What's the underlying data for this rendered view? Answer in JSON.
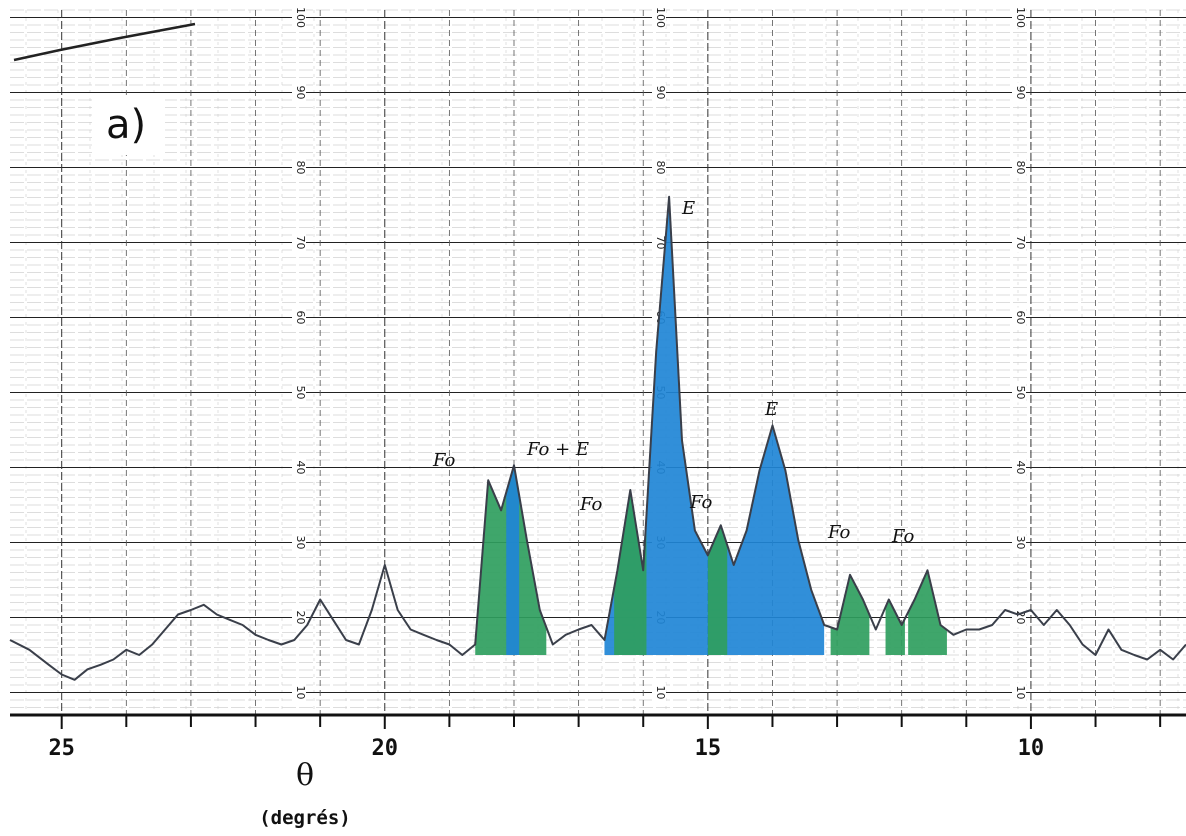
{
  "chart_data": {
    "type": "line",
    "panel_label": "a)",
    "x_label": "θ",
    "x_unit_label": "(degrés)",
    "x": [
      25.8,
      25.5,
      25.2,
      25.0,
      24.8,
      24.6,
      24.4,
      24.2,
      24.0,
      23.8,
      23.6,
      23.4,
      23.2,
      23.0,
      22.8,
      22.6,
      22.4,
      22.2,
      22.0,
      21.8,
      21.6,
      21.4,
      21.2,
      21.0,
      20.8,
      20.6,
      20.4,
      20.2,
      20.0,
      19.8,
      19.6,
      19.4,
      19.2,
      19.0,
      18.8,
      18.6,
      18.4,
      18.2,
      18.0,
      17.8,
      17.6,
      17.4,
      17.2,
      17.0,
      16.8,
      16.6,
      16.4,
      16.2,
      16.0,
      15.8,
      15.6,
      15.4,
      15.2,
      15.0,
      14.8,
      14.6,
      14.4,
      14.2,
      14.0,
      13.8,
      13.6,
      13.4,
      13.2,
      13.0,
      12.8,
      12.6,
      12.4,
      12.2,
      12.0,
      11.8,
      11.6,
      11.4,
      11.2,
      11.0,
      10.8,
      10.6,
      10.4,
      10.2,
      10.0,
      9.8,
      9.6,
      9.4,
      9.2,
      9.0,
      8.8,
      8.6,
      8.4,
      8.2,
      8.0,
      7.8,
      7.6
    ],
    "series": [
      {
        "color": "#3a3f4a",
        "values": [
          17.0,
          15.7,
          13.7,
          12.4,
          11.7,
          13.1,
          13.7,
          14.4,
          15.7,
          15.0,
          16.4,
          18.4,
          20.4,
          21.0,
          21.7,
          20.4,
          19.7,
          19.0,
          17.7,
          17.0,
          16.4,
          17.0,
          19.0,
          22.4,
          19.7,
          17.0,
          16.4,
          21.0,
          27.0,
          21.0,
          18.4,
          17.7,
          17.0,
          16.4,
          15.0,
          16.4,
          38.3,
          34.3,
          40.3,
          30.3,
          21.0,
          16.4,
          17.7,
          18.4,
          19.0,
          17.0,
          26.3,
          37.0,
          26.3,
          55.5,
          76.1,
          43.6,
          31.6,
          28.3,
          32.3,
          27.0,
          31.6,
          39.6,
          45.6,
          39.6,
          30.3,
          23.7,
          19.0,
          18.4,
          25.7,
          22.4,
          18.4,
          22.4,
          19.0,
          22.4,
          26.3,
          19.0,
          17.7,
          18.4,
          18.4,
          19.0,
          21.0,
          20.4,
          21.0,
          19.0,
          21.0,
          19.0,
          16.4,
          15.0,
          18.4,
          15.7,
          15.0,
          14.4,
          15.7,
          14.4,
          16.4
        ]
      }
    ],
    "shaded_baseline": 15,
    "shaded_regions": [
      {
        "color": "#2f9e5e",
        "xrange": [
          18.6,
          17.5
        ]
      },
      {
        "color": "#1f86d6",
        "xrange": [
          18.12,
          17.92
        ]
      },
      {
        "color": "#1f86d6",
        "xrange": [
          16.6,
          13.2
        ]
      },
      {
        "color": "#2f9e5e",
        "xrange": [
          16.45,
          15.95
        ]
      },
      {
        "color": "#2f9e5e",
        "xrange": [
          15.0,
          14.7
        ]
      },
      {
        "color": "#2f9e5e",
        "xrange": [
          13.1,
          12.5
        ]
      },
      {
        "color": "#2f9e5e",
        "xrange": [
          12.25,
          11.95
        ]
      },
      {
        "color": "#2f9e5e",
        "xrange": [
          11.9,
          11.3
        ]
      }
    ],
    "annotations": [
      "E",
      "Fo",
      "Fo + E",
      "Fo",
      "Fo",
      "E",
      "Fo",
      "Fo"
    ],
    "xlim": [
      25.8,
      7.6
    ],
    "xticks": [
      25,
      20,
      15,
      10
    ],
    "xminor": [
      24,
      23,
      22,
      21,
      19,
      18,
      17,
      16,
      14,
      13,
      12,
      11,
      9,
      8
    ],
    "ylim": [
      7,
      101
    ],
    "yticks": [
      10,
      20,
      30,
      40,
      50,
      60,
      70,
      80,
      90,
      100
    ],
    "grid": true
  }
}
